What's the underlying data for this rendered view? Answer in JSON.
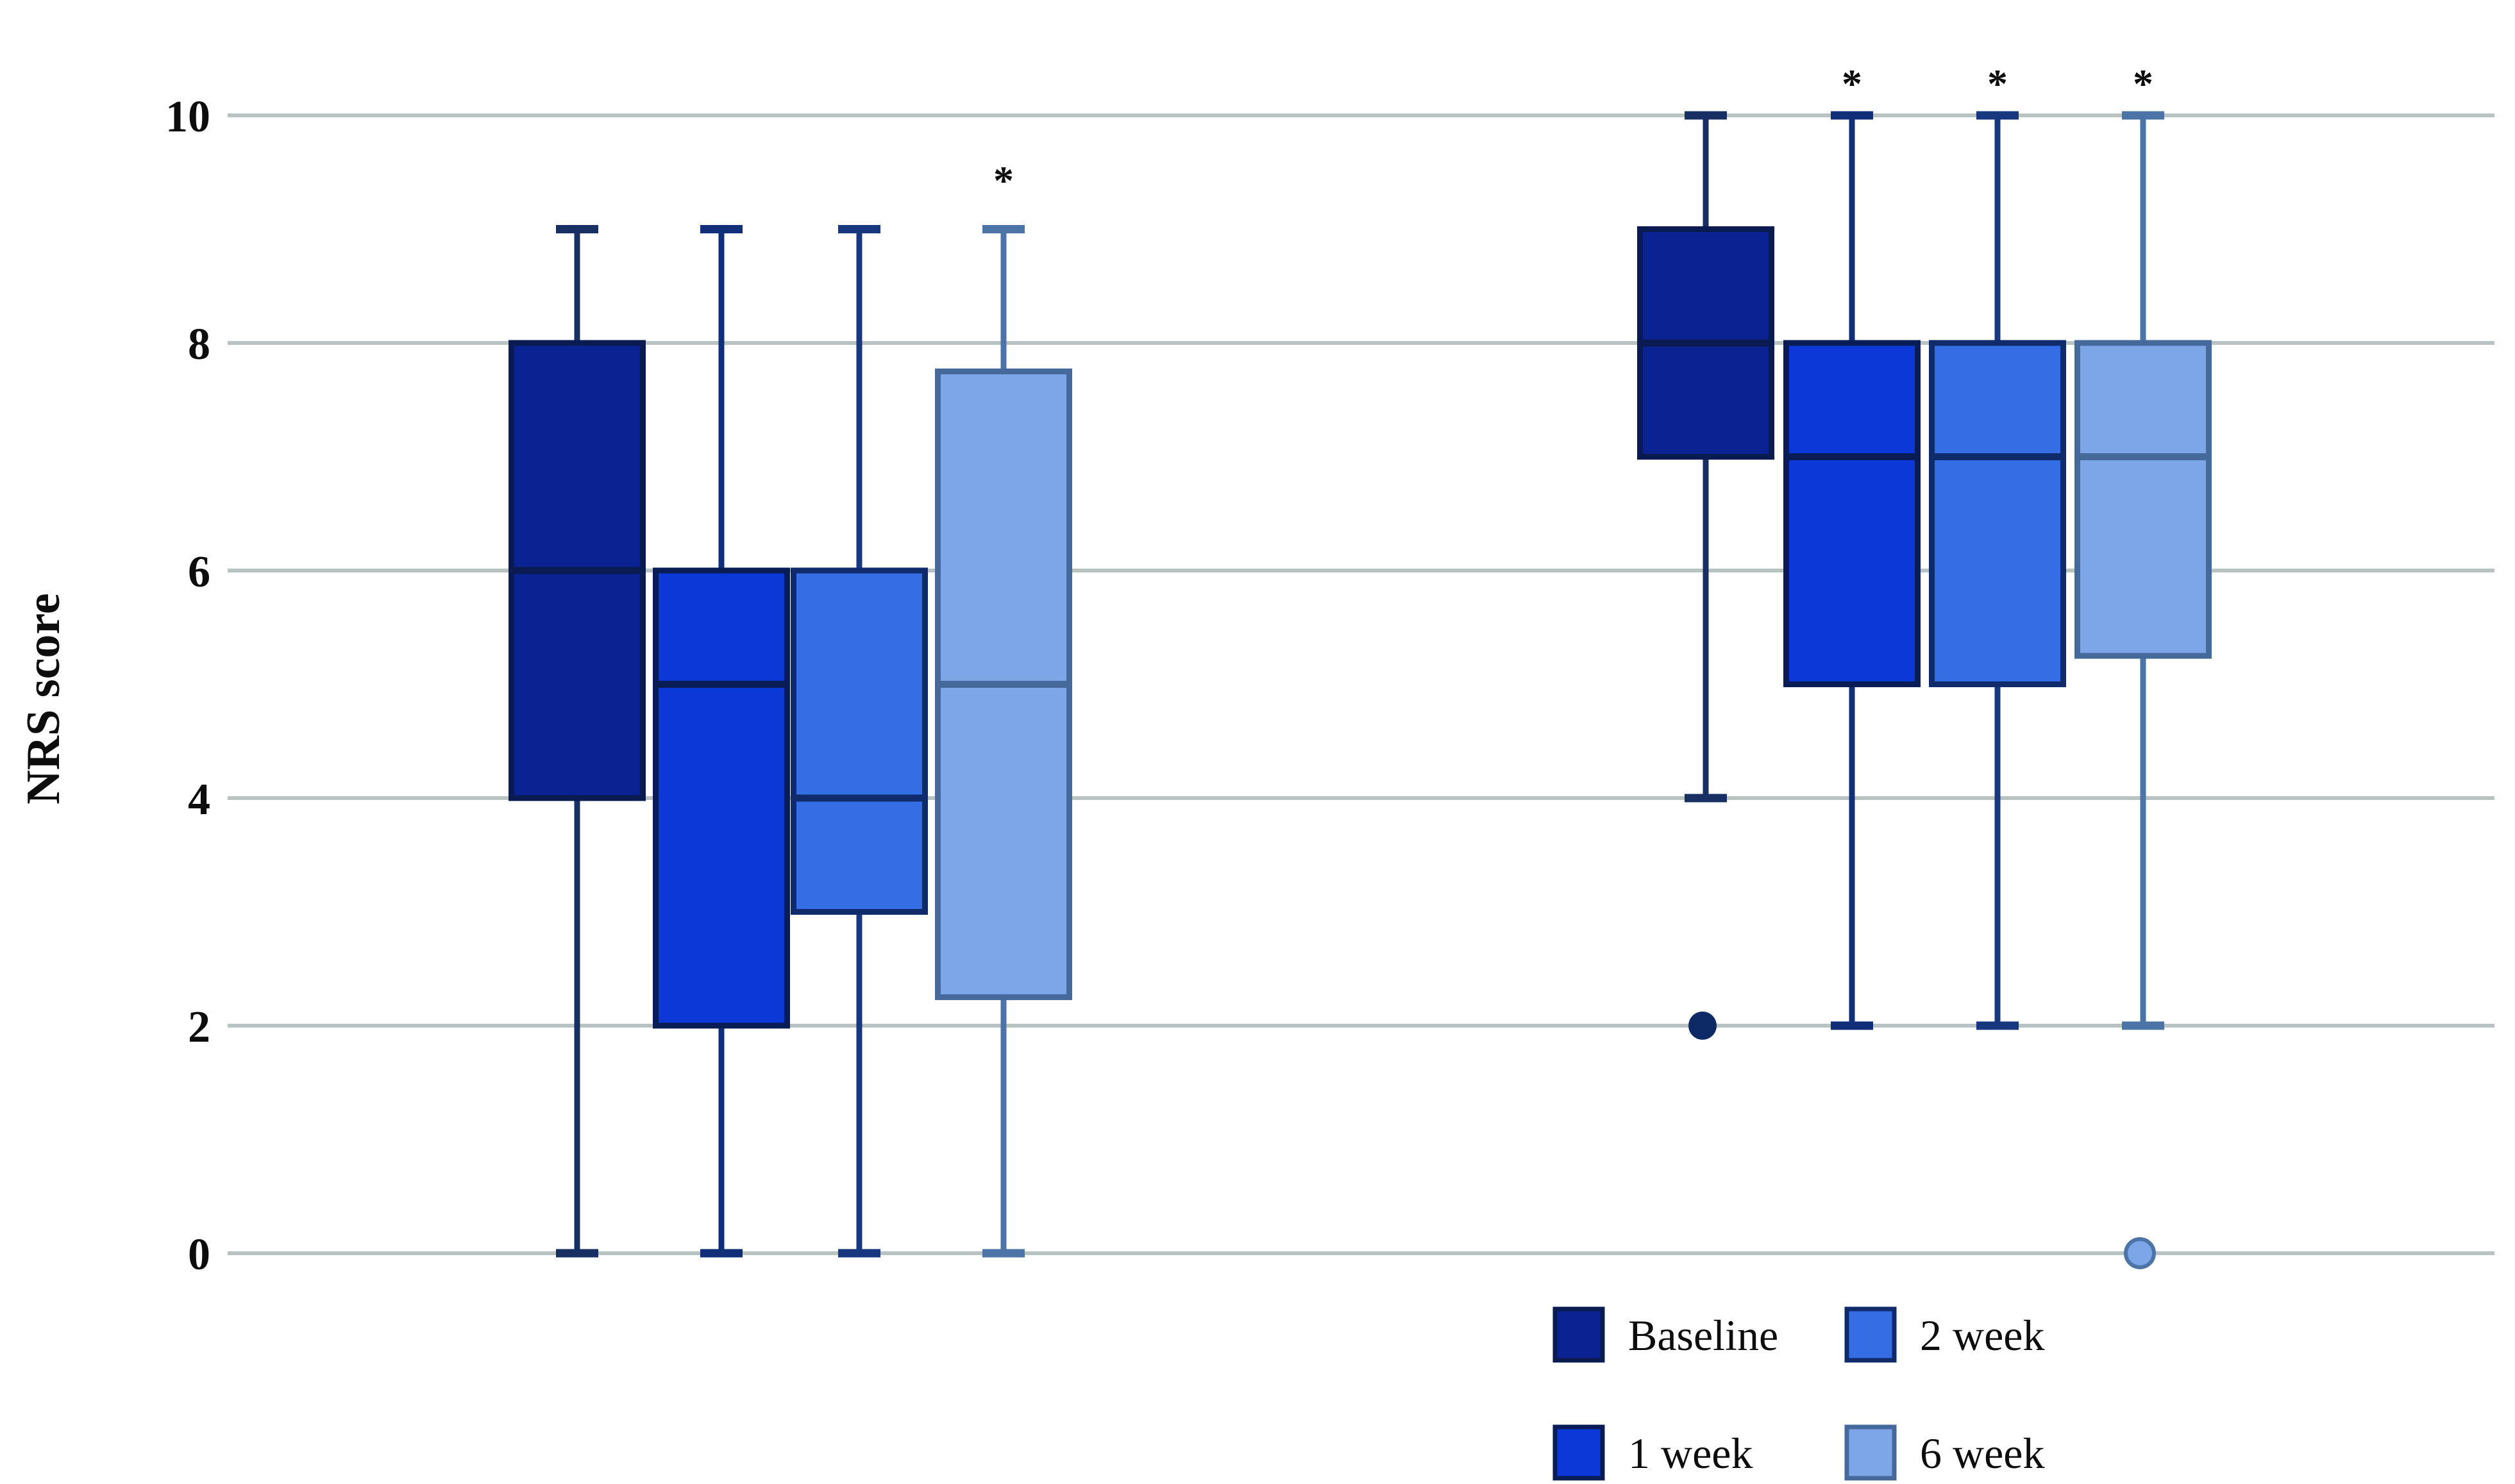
{
  "figure": {
    "background": "#ffffff",
    "significance_marker": "*"
  },
  "chart_data": {
    "type": "boxplot",
    "title": "",
    "xlabel": "",
    "ylabel": "NRS score",
    "ylim": [
      0,
      10
    ],
    "yticks": [
      0,
      2,
      4,
      6,
      8,
      10
    ],
    "grid": true,
    "gridline_color": "#b8c3c2",
    "legend_position": "bottom-right",
    "series_styles": {
      "Baseline": {
        "fill": "#0a2292",
        "border": "#0a1b52",
        "whisker": "#182f63",
        "outlier_fill": "#0d2a66",
        "outlier_stroke": "none"
      },
      "1 week": {
        "fill": "#0d38d8",
        "border": "#0a1c55",
        "whisker": "#112e78",
        "outlier_fill": "#0d38d8",
        "outlier_stroke": "#112e78"
      },
      "2 week": {
        "fill": "#346de4",
        "border": "#0f2b6b",
        "whisker": "#17377e",
        "outlier_fill": "#346de4",
        "outlier_stroke": "#17377e"
      },
      "6 week": {
        "fill": "#7da6e8",
        "border": "#46699b",
        "whisker": "#4d74a6",
        "outlier_fill": "#7da6e8",
        "outlier_stroke": "#4d74a6"
      }
    },
    "groups": [
      {
        "id": "group-1",
        "boxes": [
          {
            "series": "Baseline",
            "min": 0,
            "q1": 4,
            "median": 6,
            "q3": 8,
            "max": 9,
            "outliers": [],
            "significant": false
          },
          {
            "series": "1 week",
            "min": 0,
            "q1": 2,
            "median": 5,
            "q3": 6,
            "max": 9,
            "outliers": [],
            "significant": false
          },
          {
            "series": "2 week",
            "min": 0,
            "q1": 3,
            "median": 4,
            "q3": 6,
            "max": 9,
            "outliers": [],
            "significant": false
          },
          {
            "series": "6 week",
            "min": 0,
            "q1": 2.25,
            "median": 5,
            "q3": 7.75,
            "max": 9,
            "outliers": [],
            "significant": true
          }
        ]
      },
      {
        "id": "group-2",
        "boxes": [
          {
            "series": "Baseline",
            "min": 4,
            "q1": 7,
            "median": 8,
            "q3": 9,
            "max": 10,
            "outliers": [
              2
            ],
            "significant": false
          },
          {
            "series": "1 week",
            "min": 2,
            "q1": 5,
            "median": 7,
            "q3": 8,
            "max": 10,
            "outliers": [],
            "significant": true
          },
          {
            "series": "2 week",
            "min": 2,
            "q1": 5,
            "median": 7,
            "q3": 8,
            "max": 10,
            "outliers": [],
            "significant": true
          },
          {
            "series": "6 week",
            "min": 2,
            "q1": 5.25,
            "median": 7,
            "q3": 8,
            "max": 10,
            "outliers": [
              0
            ],
            "significant": true
          }
        ]
      }
    ],
    "legend": {
      "rows": [
        [
          "Baseline",
          "2 week"
        ],
        [
          "1 week",
          "6 week"
        ]
      ]
    }
  }
}
